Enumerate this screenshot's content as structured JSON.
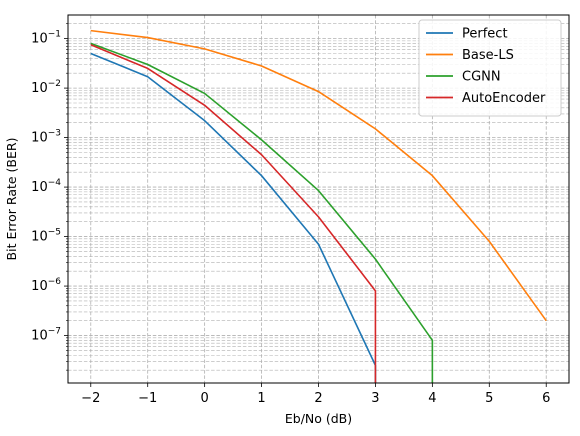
{
  "chart_data": {
    "type": "line",
    "title": "",
    "xlabel": "Eb/No (dB)",
    "ylabel": "Bit Error Rate (BER)",
    "yscale": "log",
    "xlim": [
      -2.4,
      6.4
    ],
    "ylim": [
      1.1e-08,
      0.3
    ],
    "x_ticks": [
      -2,
      -1,
      0,
      1,
      2,
      3,
      4,
      5,
      6
    ],
    "x_tick_labels": [
      "−2",
      "−1",
      "0",
      "1",
      "2",
      "3",
      "4",
      "5",
      "6"
    ],
    "y_ticks": [
      1e-07,
      1e-06,
      1e-05,
      0.0001,
      0.001,
      0.01,
      0.1
    ],
    "y_tick_labels": [
      {
        "base": "10",
        "exp": "−7"
      },
      {
        "base": "10",
        "exp": "−6"
      },
      {
        "base": "10",
        "exp": "−5"
      },
      {
        "base": "10",
        "exp": "−4"
      },
      {
        "base": "10",
        "exp": "−3"
      },
      {
        "base": "10",
        "exp": "−2"
      },
      {
        "base": "10",
        "exp": "−1"
      }
    ],
    "grid": true,
    "grid_minor": true,
    "legend_position": "top-right",
    "series": [
      {
        "name": "Perfect",
        "color": "#1f77b4",
        "x": [
          -2,
          -1,
          0,
          1,
          2,
          3,
          3
        ],
        "y": [
          0.05,
          0.017,
          0.0022,
          0.00017,
          7e-06,
          2.5e-08,
          1.1e-08
        ]
      },
      {
        "name": "Base-LS",
        "color": "#ff7f0e",
        "x": [
          -2,
          -1,
          0,
          1,
          2,
          3,
          4,
          5,
          6
        ],
        "y": [
          0.145,
          0.105,
          0.062,
          0.028,
          0.0085,
          0.0015,
          0.00017,
          8e-06,
          2e-07
        ]
      },
      {
        "name": "CGNN",
        "color": "#2ca02c",
        "x": [
          -2,
          -1,
          0,
          1,
          2,
          3,
          4,
          4
        ],
        "y": [
          0.08,
          0.03,
          0.0078,
          0.0009,
          8.5e-05,
          3.5e-06,
          8e-08,
          1.1e-08
        ]
      },
      {
        "name": "AutoEncoder",
        "color": "#d62728",
        "x": [
          -2,
          -1,
          0,
          1,
          2,
          3,
          3
        ],
        "y": [
          0.075,
          0.025,
          0.0045,
          0.00045,
          2.5e-05,
          8e-07,
          1.1e-08
        ]
      }
    ]
  }
}
